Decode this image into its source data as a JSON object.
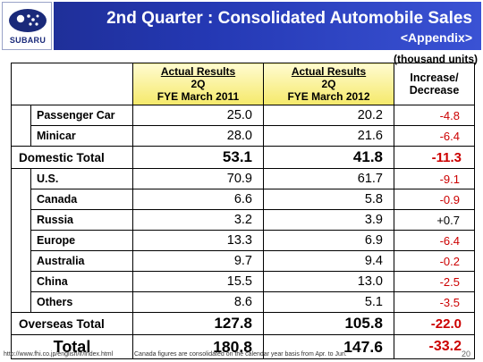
{
  "header": {
    "title": "2nd Quarter : Consolidated Automobile Sales",
    "subtitle": "<Appendix>",
    "logo_text": "SUBARU"
  },
  "units": "(thousand units)",
  "table": {
    "headers": {
      "col_a": {
        "line1": "Actual Results",
        "line2": "2Q",
        "line3": "FYE March 2011"
      },
      "col_b": {
        "line1": "Actual Results",
        "line2": "2Q",
        "line3": "FYE March 2012"
      },
      "col_c": {
        "line1": "Increase/",
        "line2": "Decrease"
      }
    },
    "domestic": [
      {
        "label": "Passenger Car",
        "a": "25.0",
        "b": "20.2",
        "c": "-4.8"
      },
      {
        "label": "Minicar",
        "a": "28.0",
        "b": "21.6",
        "c": "-6.4"
      }
    ],
    "domestic_total": {
      "label": "Domestic Total",
      "a": "53.1",
      "b": "41.8",
      "c": "-11.3"
    },
    "overseas": [
      {
        "label": "U.S.",
        "a": "70.9",
        "b": "61.7",
        "c": "-9.1"
      },
      {
        "label": "Canada",
        "a": "6.6",
        "b": "5.8",
        "c": "-0.9"
      },
      {
        "label": "Russia",
        "a": "3.2",
        "b": "3.9",
        "c": "+0.7"
      },
      {
        "label": "Europe",
        "a": "13.3",
        "b": "6.9",
        "c": "-6.4"
      },
      {
        "label": "Australia",
        "a": "9.7",
        "b": "9.4",
        "c": "-0.2"
      },
      {
        "label": "China",
        "a": "15.5",
        "b": "13.0",
        "c": "-2.5"
      },
      {
        "label": "Others",
        "a": "8.6",
        "b": "5.1",
        "c": "-3.5"
      }
    ],
    "overseas_total": {
      "label": "Overseas Total",
      "a": "127.8",
      "b": "105.8",
      "c": "-22.0"
    },
    "grand_total": {
      "label": "Total",
      "a": "180.8",
      "b": "147.6",
      "c": "-33.2"
    }
  },
  "footer": {
    "url": "http://www.fhi.co.jp/english/ir/index.html",
    "note": "Canada figures are consolidated on the calendar year basis from Apr. to Jun.",
    "page": "20"
  },
  "colors": {
    "title_bar": "#2438b3",
    "negative": "#cc0000",
    "header_highlight": "#f5e96a"
  }
}
